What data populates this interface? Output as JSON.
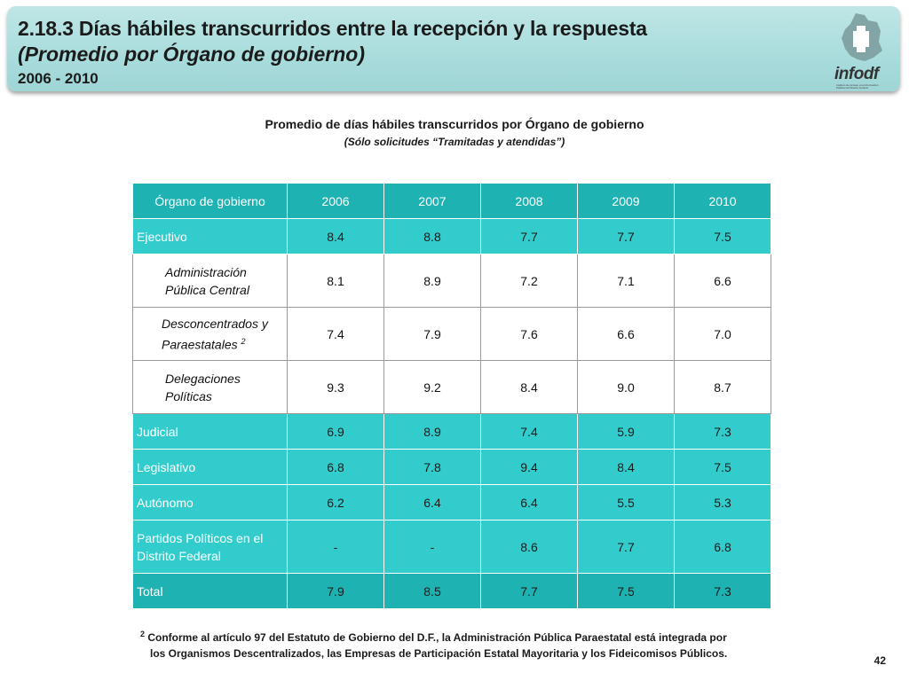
{
  "header": {
    "title_line1": "2.18.3 Días hábiles transcurridos entre la recepción y la respuesta",
    "title_line2": "(Promedio por Órgano de gobierno)",
    "years": "2006 - 2010",
    "logo_text": "infodf",
    "logo_caption": "Instituto de Acceso a la Información Pública del Distrito Federal"
  },
  "subtitle": "Promedio de días hábiles transcurridos por Órgano de gobierno",
  "subtitle_note": "(Sólo solicitudes “Tramitadas y atendidas”)",
  "table": {
    "headers": [
      "Órgano de gobierno",
      "2006",
      "2007",
      "2008",
      "2009",
      "2010"
    ],
    "rows": [
      {
        "name": "Ejecutivo",
        "values": [
          "8.4",
          "8.8",
          "7.7",
          "7.7",
          "7.5"
        ]
      },
      {
        "name_line1": "Administración",
        "name_line2": "Pública Central",
        "values": [
          "8.1",
          "8.9",
          "7.2",
          "7.1",
          "6.6"
        ]
      },
      {
        "name_line1": "Desconcentrados y",
        "name_line2": "Paraestatales",
        "sup": "2",
        "values": [
          "7.4",
          "7.9",
          "7.6",
          "6.6",
          "7.0"
        ]
      },
      {
        "name_line1": "Delegaciones",
        "name_line2": "Políticas",
        "values": [
          "9.3",
          "9.2",
          "8.4",
          "9.0",
          "8.7"
        ]
      },
      {
        "name": "Judicial",
        "values": [
          "6.9",
          "8.9",
          "7.4",
          "5.9",
          "7.3"
        ]
      },
      {
        "name": "Legislativo",
        "values": [
          "6.8",
          "7.8",
          "9.4",
          "8.4",
          "7.5"
        ]
      },
      {
        "name": "Autónomo",
        "values": [
          "6.2",
          "6.4",
          "6.4",
          "5.5",
          "5.3"
        ]
      },
      {
        "name_line1": "Partidos Políticos en el",
        "name_line2": "Distrito Federal",
        "values": [
          "-",
          "-",
          "8.6",
          "7.7",
          "6.8"
        ]
      },
      {
        "name": "Total",
        "values": [
          "7.9",
          "8.5",
          "7.7",
          "7.5",
          "7.3"
        ]
      }
    ]
  },
  "footnote": {
    "marker": "2",
    "line1": "Conforme al artículo 97 del Estatuto de Gobierno del D.F., la Administración Pública Paraestatal está integrada por",
    "line2": "los Organismos Descentralizados, las Empresas de Participación Estatal Mayoritaria y los Fideicomisos Públicos."
  },
  "page_number": "42",
  "colors": {
    "header_bg": "#a9dcdc",
    "table_header": "#1eb2b2",
    "table_row": "#33cccc"
  }
}
